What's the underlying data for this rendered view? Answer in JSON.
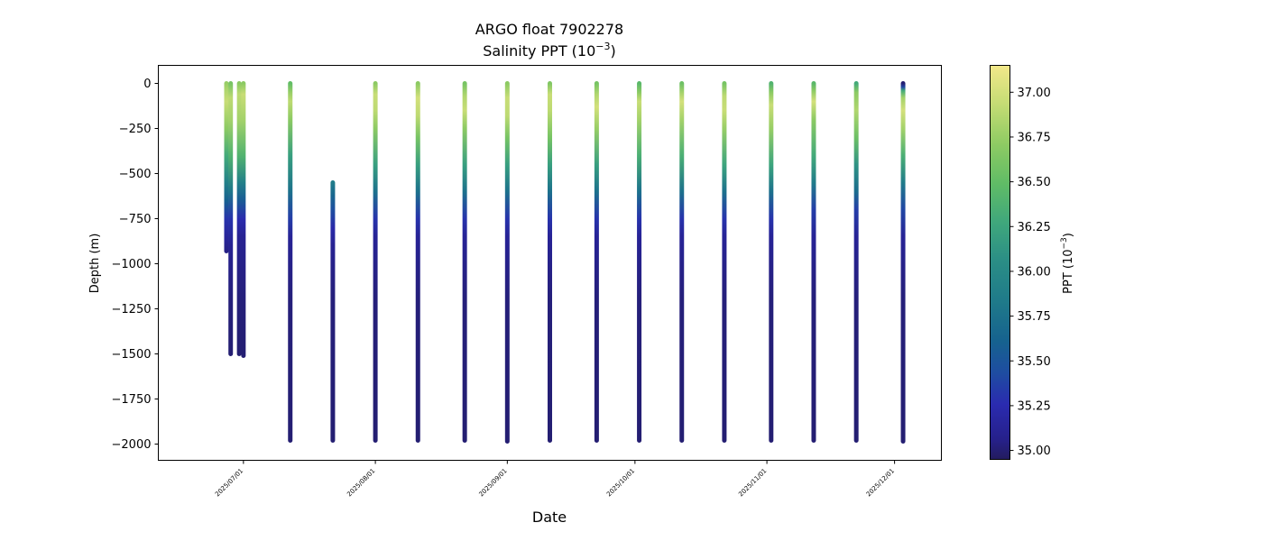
{
  "chart_data": {
    "type": "scatter",
    "title": "ARGO float 7902278",
    "subtitle_text": "Salinity PPT (10",
    "subtitle_exp": "−3",
    "subtitle_close": ")",
    "xlabel": "Date",
    "ylabel": "Depth (m)",
    "colorbar_label_text": "PPT (10",
    "colorbar_label_exp": "−3",
    "colorbar_label_close": ")",
    "xlim": [
      "2025-06-11",
      "2025-12-12"
    ],
    "ylim": [
      -2090,
      100
    ],
    "color_range": [
      34.95,
      37.15
    ],
    "colormap_stops": [
      [
        0.0,
        "#231c5e"
      ],
      [
        0.05,
        "#26208a"
      ],
      [
        0.14,
        "#2a2bb0"
      ],
      [
        0.22,
        "#1e4da1"
      ],
      [
        0.3,
        "#16628f"
      ],
      [
        0.4,
        "#1f7a8a"
      ],
      [
        0.5,
        "#2a8d86"
      ],
      [
        0.6,
        "#3fa77c"
      ],
      [
        0.7,
        "#60bc66"
      ],
      [
        0.8,
        "#8ecb63"
      ],
      [
        0.9,
        "#c4dc74"
      ],
      [
        1.0,
        "#f2e88a"
      ]
    ],
    "x_ticks": [
      "2025/07/01",
      "2025/08/01",
      "2025/09/01",
      "2025/10/01",
      "2025/11/01",
      "2025/12/01"
    ],
    "y_ticks": [
      0,
      -250,
      -500,
      -750,
      -1000,
      -1250,
      -1500,
      -1750,
      -2000
    ],
    "colorbar_ticks": [
      "35.00",
      "35.25",
      "35.50",
      "35.75",
      "36.00",
      "36.25",
      "36.50",
      "36.75",
      "37.00"
    ],
    "colorbar_tick_values": [
      35.0,
      35.25,
      35.5,
      35.75,
      36.0,
      36.25,
      36.5,
      36.75,
      37.0
    ],
    "profiles": [
      {
        "date": "2025-06-27",
        "max_depth": -930,
        "min_depth": 0,
        "salinity": [
          [
            0,
            36.75
          ],
          [
            -40,
            36.85
          ],
          [
            -100,
            36.95
          ],
          [
            -160,
            36.85
          ],
          [
            -250,
            36.7
          ],
          [
            -400,
            36.3
          ],
          [
            -550,
            35.9
          ],
          [
            -650,
            35.6
          ],
          [
            -750,
            35.3
          ],
          [
            -850,
            35.15
          ],
          [
            -930,
            35.05
          ]
        ]
      },
      {
        "date": "2025-06-28",
        "max_depth": -1500,
        "min_depth": 0,
        "salinity": [
          [
            0,
            36.6
          ],
          [
            -80,
            36.9
          ],
          [
            -200,
            36.8
          ],
          [
            -400,
            36.4
          ],
          [
            -600,
            35.8
          ],
          [
            -750,
            35.3
          ],
          [
            -900,
            35.1
          ],
          [
            -1200,
            35.02
          ],
          [
            -1500,
            35.0
          ]
        ]
      },
      {
        "date": "2025-06-30",
        "max_depth": -1500,
        "min_depth": 0,
        "salinity": [
          [
            0,
            36.7
          ],
          [
            -60,
            36.9
          ],
          [
            -200,
            36.8
          ],
          [
            -400,
            36.4
          ],
          [
            -550,
            35.9
          ],
          [
            -650,
            35.55
          ],
          [
            -750,
            35.25
          ],
          [
            -850,
            35.1
          ],
          [
            -1200,
            35.02
          ],
          [
            -1500,
            35.0
          ]
        ]
      },
      {
        "date": "2025-07-01",
        "max_depth": -1510,
        "min_depth": 0,
        "salinity": [
          [
            0,
            36.7
          ],
          [
            -60,
            36.95
          ],
          [
            -200,
            36.8
          ],
          [
            -400,
            36.4
          ],
          [
            -550,
            35.9
          ],
          [
            -650,
            35.55
          ],
          [
            -750,
            35.25
          ],
          [
            -850,
            35.1
          ],
          [
            -1200,
            35.02
          ],
          [
            -1510,
            35.0
          ]
        ]
      },
      {
        "date": "2025-07-12",
        "max_depth": -1980,
        "min_depth": 0,
        "salinity": [
          [
            0,
            36.5
          ],
          [
            -50,
            36.75
          ],
          [
            -100,
            36.9
          ],
          [
            -200,
            36.7
          ],
          [
            -400,
            36.2
          ],
          [
            -600,
            35.75
          ],
          [
            -750,
            35.35
          ],
          [
            -850,
            35.12
          ],
          [
            -1200,
            35.02
          ],
          [
            -1980,
            35.0
          ]
        ]
      },
      {
        "date": "2025-07-22",
        "max_depth": -1980,
        "min_depth": -550,
        "salinity": [
          [
            -550,
            35.85
          ],
          [
            -620,
            35.65
          ],
          [
            -700,
            35.45
          ],
          [
            -800,
            35.22
          ],
          [
            -900,
            35.1
          ],
          [
            -1200,
            35.02
          ],
          [
            -1980,
            35.0
          ]
        ]
      },
      {
        "date": "2025-08-01",
        "max_depth": -1980,
        "min_depth": 0,
        "salinity": [
          [
            0,
            36.7
          ],
          [
            -60,
            36.95
          ],
          [
            -150,
            36.9
          ],
          [
            -250,
            36.7
          ],
          [
            -450,
            36.2
          ],
          [
            -600,
            35.75
          ],
          [
            -750,
            35.3
          ],
          [
            -850,
            35.12
          ],
          [
            -1200,
            35.02
          ],
          [
            -1980,
            35.0
          ]
        ]
      },
      {
        "date": "2025-08-11",
        "max_depth": -1980,
        "min_depth": 0,
        "salinity": [
          [
            0,
            36.7
          ],
          [
            -80,
            37.0
          ],
          [
            -180,
            36.9
          ],
          [
            -300,
            36.6
          ],
          [
            -450,
            36.2
          ],
          [
            -600,
            35.75
          ],
          [
            -750,
            35.3
          ],
          [
            -850,
            35.12
          ],
          [
            -1200,
            35.02
          ],
          [
            -1980,
            35.0
          ]
        ]
      },
      {
        "date": "2025-08-22",
        "max_depth": -1980,
        "min_depth": 0,
        "salinity": [
          [
            0,
            36.6
          ],
          [
            -70,
            36.85
          ],
          [
            -150,
            36.95
          ],
          [
            -250,
            36.7
          ],
          [
            -450,
            36.2
          ],
          [
            -600,
            35.75
          ],
          [
            -750,
            35.3
          ],
          [
            -850,
            35.12
          ],
          [
            -1200,
            35.02
          ],
          [
            -1980,
            35.0
          ]
        ]
      },
      {
        "date": "2025-09-01",
        "max_depth": -1985,
        "min_depth": 0,
        "salinity": [
          [
            0,
            36.7
          ],
          [
            -80,
            36.95
          ],
          [
            -180,
            36.9
          ],
          [
            -300,
            36.6
          ],
          [
            -450,
            36.2
          ],
          [
            -600,
            35.75
          ],
          [
            -750,
            35.3
          ],
          [
            -850,
            35.12
          ],
          [
            -1200,
            35.02
          ],
          [
            -1985,
            35.0
          ]
        ]
      },
      {
        "date": "2025-09-11",
        "max_depth": -1980,
        "min_depth": 0,
        "salinity": [
          [
            0,
            36.65
          ],
          [
            -60,
            36.95
          ],
          [
            -150,
            36.9
          ],
          [
            -300,
            36.6
          ],
          [
            -450,
            36.2
          ],
          [
            -600,
            35.75
          ],
          [
            -750,
            35.3
          ],
          [
            -850,
            35.12
          ],
          [
            -1200,
            35.02
          ],
          [
            -1980,
            35.0
          ]
        ]
      },
      {
        "date": "2025-09-22",
        "max_depth": -1980,
        "min_depth": 0,
        "salinity": [
          [
            0,
            36.6
          ],
          [
            -60,
            36.85
          ],
          [
            -130,
            37.0
          ],
          [
            -250,
            36.75
          ],
          [
            -450,
            36.2
          ],
          [
            -600,
            35.75
          ],
          [
            -750,
            35.3
          ],
          [
            -850,
            35.12
          ],
          [
            -1200,
            35.02
          ],
          [
            -1980,
            35.0
          ]
        ]
      },
      {
        "date": "2025-10-02",
        "max_depth": -1980,
        "min_depth": 0,
        "salinity": [
          [
            0,
            36.45
          ],
          [
            -50,
            36.7
          ],
          [
            -100,
            36.95
          ],
          [
            -200,
            36.8
          ],
          [
            -400,
            36.35
          ],
          [
            -600,
            35.75
          ],
          [
            -750,
            35.3
          ],
          [
            -850,
            35.12
          ],
          [
            -1200,
            35.02
          ],
          [
            -1980,
            35.0
          ]
        ]
      },
      {
        "date": "2025-10-12",
        "max_depth": -1980,
        "min_depth": 0,
        "salinity": [
          [
            0,
            36.55
          ],
          [
            -50,
            36.8
          ],
          [
            -100,
            37.0
          ],
          [
            -200,
            36.8
          ],
          [
            -400,
            36.35
          ],
          [
            -600,
            35.75
          ],
          [
            -750,
            35.3
          ],
          [
            -850,
            35.12
          ],
          [
            -1200,
            35.02
          ],
          [
            -1980,
            35.0
          ]
        ]
      },
      {
        "date": "2025-10-22",
        "max_depth": -1980,
        "min_depth": 0,
        "salinity": [
          [
            0,
            36.6
          ],
          [
            -70,
            36.9
          ],
          [
            -150,
            36.95
          ],
          [
            -250,
            36.75
          ],
          [
            -450,
            36.25
          ],
          [
            -600,
            35.75
          ],
          [
            -750,
            35.3
          ],
          [
            -850,
            35.12
          ],
          [
            -1200,
            35.02
          ],
          [
            -1980,
            35.0
          ]
        ]
      },
      {
        "date": "2025-11-02",
        "max_depth": -1980,
        "min_depth": 0,
        "salinity": [
          [
            0,
            36.4
          ],
          [
            -50,
            36.7
          ],
          [
            -120,
            36.95
          ],
          [
            -250,
            36.75
          ],
          [
            -450,
            36.25
          ],
          [
            -600,
            35.75
          ],
          [
            -750,
            35.3
          ],
          [
            -850,
            35.12
          ],
          [
            -1200,
            35.02
          ],
          [
            -1980,
            35.0
          ]
        ]
      },
      {
        "date": "2025-11-12",
        "max_depth": -1980,
        "min_depth": 0,
        "salinity": [
          [
            0,
            36.45
          ],
          [
            -40,
            36.7
          ],
          [
            -100,
            37.0
          ],
          [
            -200,
            36.7
          ],
          [
            -400,
            36.3
          ],
          [
            -550,
            35.85
          ],
          [
            -700,
            35.35
          ],
          [
            -850,
            35.12
          ],
          [
            -1200,
            35.02
          ],
          [
            -1980,
            35.0
          ]
        ]
      },
      {
        "date": "2025-11-22",
        "max_depth": -1980,
        "min_depth": 0,
        "salinity": [
          [
            0,
            36.3
          ],
          [
            -50,
            36.7
          ],
          [
            -150,
            36.85
          ],
          [
            -300,
            36.55
          ],
          [
            -450,
            36.1
          ],
          [
            -600,
            35.7
          ],
          [
            -700,
            35.35
          ],
          [
            -850,
            35.12
          ],
          [
            -1200,
            35.02
          ],
          [
            -1980,
            35.0
          ]
        ]
      },
      {
        "date": "2025-12-03",
        "max_depth": -1985,
        "min_depth": 0,
        "salinity": [
          [
            0,
            35.0
          ],
          [
            -20,
            35.4
          ],
          [
            -40,
            36.3
          ],
          [
            -80,
            36.8
          ],
          [
            -150,
            37.0
          ],
          [
            -250,
            36.8
          ],
          [
            -400,
            36.35
          ],
          [
            -550,
            35.85
          ],
          [
            -700,
            35.4
          ],
          [
            -850,
            35.12
          ],
          [
            -1200,
            35.02
          ],
          [
            -1985,
            35.0
          ]
        ]
      }
    ]
  }
}
